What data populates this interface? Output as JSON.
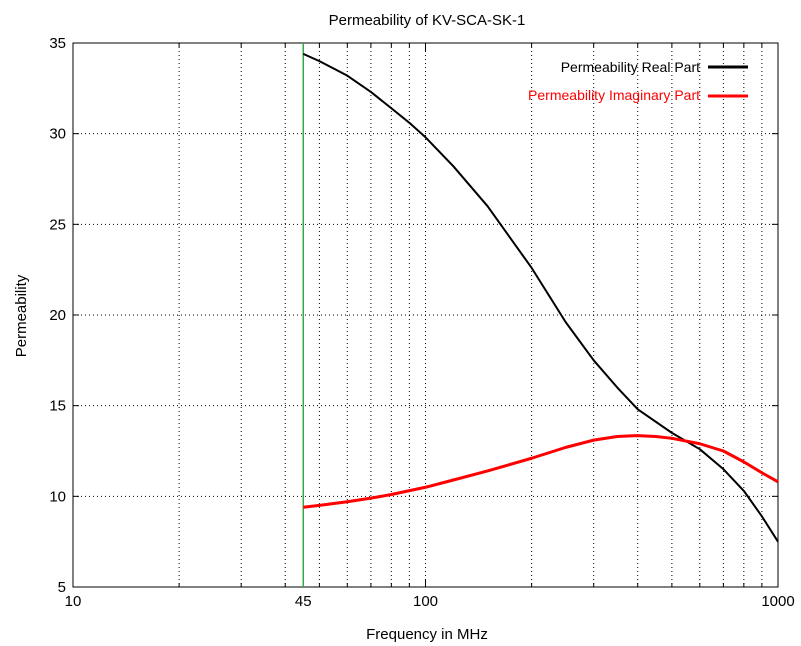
{
  "chart_data": {
    "type": "line",
    "title": "Permeability of KV-SCA-SK-1",
    "xlabel": "Frequency in MHz",
    "ylabel": "Permeability",
    "xscale": "log",
    "xlim": [
      10,
      1000
    ],
    "ylim": [
      5,
      35
    ],
    "x_ticks": [
      10,
      100,
      1000
    ],
    "x_tick_labels": [
      "10",
      "100",
      "1000"
    ],
    "marker_x": 45,
    "marker_label": "45",
    "marker_color": "#33aa44",
    "y_ticks": [
      5,
      10,
      15,
      20,
      25,
      30,
      35
    ],
    "y_tick_labels": [
      "5",
      "10",
      "15",
      "20",
      "25",
      "30",
      "35"
    ],
    "grid": true,
    "legend_position": "top-right",
    "series": [
      {
        "name": "Permeability Real Part",
        "color": "#000000",
        "x": [
          45,
          50,
          60,
          70,
          80,
          90,
          100,
          120,
          150,
          200,
          250,
          300,
          350,
          400,
          500,
          600,
          700,
          800,
          900,
          1000
        ],
        "y": [
          34.4,
          34.0,
          33.2,
          32.3,
          31.4,
          30.6,
          29.8,
          28.2,
          26.0,
          22.6,
          19.6,
          17.5,
          16.0,
          14.8,
          13.5,
          12.6,
          11.5,
          10.3,
          8.9,
          7.5
        ]
      },
      {
        "name": "Permeability Imaginary Part",
        "color": "#ff0000",
        "x": [
          45,
          50,
          60,
          70,
          80,
          100,
          120,
          150,
          200,
          250,
          300,
          350,
          400,
          450,
          500,
          600,
          700,
          800,
          900,
          1000
        ],
        "y": [
          9.4,
          9.5,
          9.7,
          9.9,
          10.1,
          10.5,
          10.9,
          11.4,
          12.1,
          12.7,
          13.1,
          13.3,
          13.35,
          13.3,
          13.2,
          12.9,
          12.5,
          11.9,
          11.3,
          10.8
        ]
      }
    ]
  }
}
